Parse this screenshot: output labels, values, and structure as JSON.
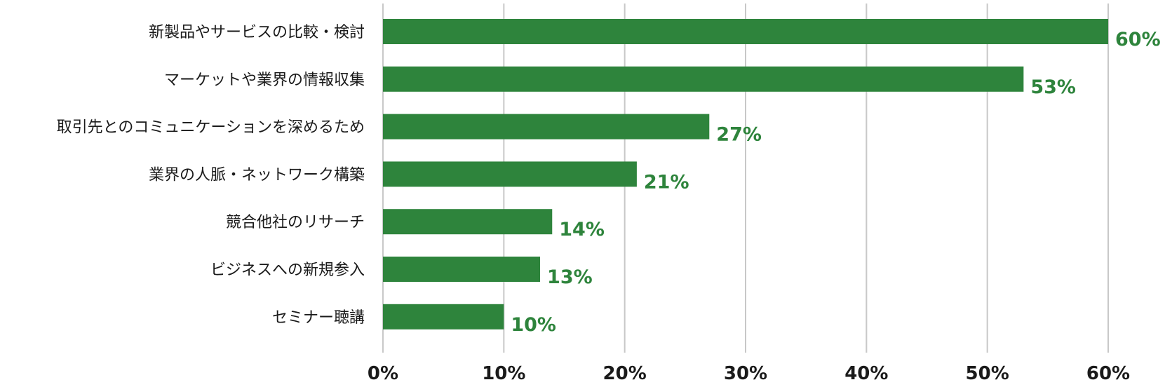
{
  "chart_data": {
    "type": "bar",
    "orientation": "horizontal",
    "categories": [
      "新製品やサービスの比較・検討",
      "マーケットや業界の情報収集",
      "取引先とのコミュニケーションを深めるため",
      "業界の人脈・ネットワーク構築",
      "競合他社のリサーチ",
      "ビジネスへの新規参入",
      "セミナー聴講"
    ],
    "values": [
      60,
      53,
      27,
      21,
      14,
      13,
      10
    ],
    "data_labels": [
      "60%",
      "53%",
      "27%",
      "21%",
      "14%",
      "13%",
      "10%"
    ],
    "x_ticks": [
      "0%",
      "10%",
      "20%",
      "30%",
      "40%",
      "50%",
      "60%"
    ],
    "xlim": [
      0,
      60
    ],
    "unit": "%",
    "grid": "vertical",
    "legend": "none",
    "title": "",
    "xlabel": "",
    "ylabel": "",
    "colors": {
      "bar": "#2e843c",
      "data_label": "#2e843c",
      "grid": "#c8c8c8",
      "text": "#1a1a1a"
    }
  }
}
